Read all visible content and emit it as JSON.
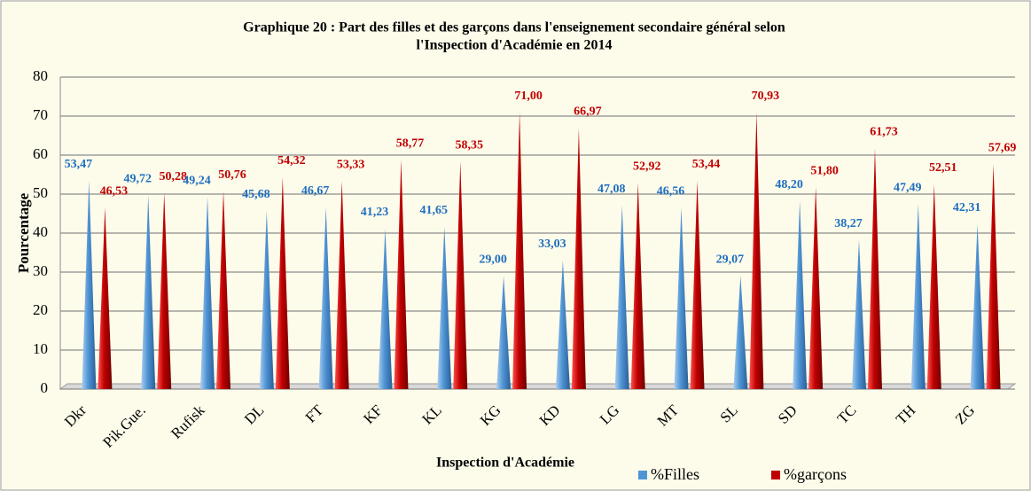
{
  "chart_data": {
    "type": "bar",
    "title": [
      "Graphique 20 : Part des filles et des garçons dans l'enseignement secondaire général  selon",
      "l'Inspection d'Académie en 2014"
    ],
    "x_label": "Inspection d'Académie",
    "y_label": "Pourcentage",
    "categories": [
      "Dkr",
      "Pik.Gue.",
      "Rufisk",
      "DL",
      "FT",
      "KF",
      "KL",
      "KG",
      "KD",
      "LG",
      "MT",
      "SL",
      "SD",
      "TC",
      "TH",
      "ZG"
    ],
    "series": [
      {
        "name": "%Filles",
        "color": "#4f94d4",
        "label_color": "#1f6fbf",
        "values": [
          53.47,
          49.72,
          49.24,
          45.68,
          46.67,
          41.23,
          41.65,
          29,
          33.03,
          47.08,
          46.56,
          29.07,
          48.2,
          38.27,
          47.49,
          42.31
        ],
        "value_labels": [
          "53,47",
          "49,72",
          "49,24",
          "45,68",
          "46,67",
          "41,23",
          "41,65",
          "29,00",
          "33,03",
          "47,08",
          "46,56",
          "29,07",
          "48,20",
          "38,27",
          "47,49",
          "42,31"
        ]
      },
      {
        "name": "%garçons",
        "color": "#c00000",
        "label_color": "#c00000",
        "values": [
          46.53,
          50.28,
          50.76,
          54.32,
          53.33,
          58.77,
          58.35,
          71,
          66.97,
          52.92,
          53.44,
          70.93,
          51.8,
          61.73,
          52.51,
          57.69
        ],
        "value_labels": [
          "46,53",
          "50,28",
          "50,76",
          "54,32",
          "53,33",
          "58,77",
          "58,35",
          "71,00",
          "66,97",
          "52,92",
          "53,44",
          "70,93",
          "51,80",
          "61,73",
          "52,51",
          "57,69"
        ]
      }
    ],
    "ylim": [
      0,
      80
    ],
    "yticks": [
      0,
      10,
      20,
      30,
      40,
      50,
      60,
      70,
      80
    ],
    "grid": true,
    "legend": "bottom-right"
  }
}
